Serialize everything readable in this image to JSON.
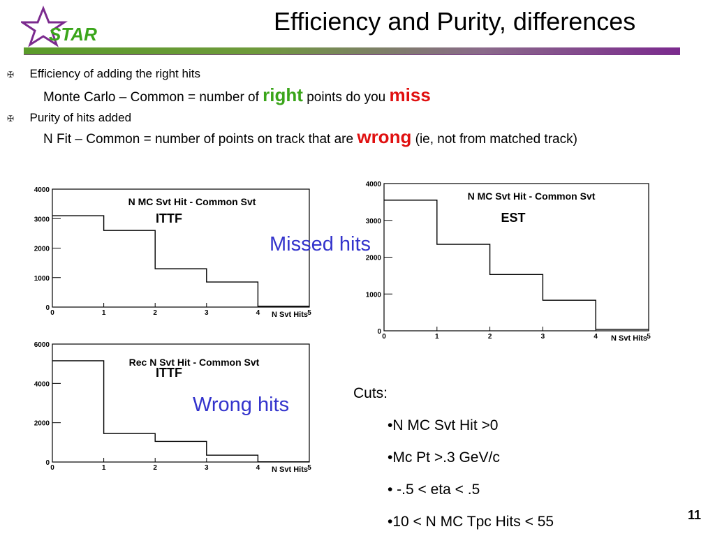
{
  "slide": {
    "title": "Efficiency and Purity, differences",
    "page_number": "11",
    "logo_text": "STAR",
    "bullets": [
      {
        "icon": "cross-bullet-icon",
        "text": "Efficiency of adding the right hits"
      },
      {
        "icon": "cross-bullet-icon",
        "text": "Purity of hits added"
      }
    ],
    "line1": {
      "before": "Monte Carlo – Common = number of ",
      "highlight": "right",
      "middle": " points do you ",
      "highlight2": "miss"
    },
    "line2": {
      "before": "N Fit – Common = number of points on track that are ",
      "highlight": "wrong",
      "after": " (ie, not from matched track)"
    },
    "annotations": {
      "missed": "Missed hits",
      "wrong": "Wrong hits"
    },
    "cuts": {
      "title": "Cuts:",
      "items": [
        "•N MC Svt Hit >0",
        "•Mc Pt >.3 GeV/c",
        "• -.5 < eta < .5",
        "•10 < N MC Tpc Hits < 55"
      ]
    },
    "colors": {
      "green": "#3aa51a",
      "red": "#e01010",
      "blue": "#3333cc",
      "purple": "#7b2a8e"
    }
  },
  "chart_data": [
    {
      "type": "bar",
      "title": "N MC Svt Hit - Common Svt",
      "label": "ITTF",
      "xlabel": "N Svt Hits",
      "ylabel": "",
      "bin_edges": [
        0,
        1,
        2,
        3,
        4,
        5
      ],
      "values": [
        3100,
        2600,
        1300,
        850,
        30
      ],
      "xlim": [
        0,
        5
      ],
      "ylim": [
        0,
        4000
      ],
      "y_ticks": [
        0,
        1000,
        2000,
        3000,
        4000
      ],
      "x_ticks": [
        0,
        1,
        2,
        3,
        4,
        5
      ],
      "y_tick_labels": [
        "0",
        "1000",
        "2000",
        "3000",
        "4000"
      ]
    },
    {
      "type": "bar",
      "title": "N MC Svt Hit - Common Svt",
      "label": "EST",
      "xlabel": "N Svt Hits",
      "ylabel": "",
      "bin_edges": [
        0,
        1,
        2,
        3,
        4,
        5
      ],
      "values": [
        3550,
        2350,
        1530,
        830,
        40
      ],
      "xlim": [
        0,
        5
      ],
      "ylim": [
        0,
        4000
      ],
      "y_ticks": [
        0,
        1000,
        2000,
        3000,
        4000
      ],
      "x_ticks": [
        0,
        1,
        2,
        3,
        4,
        5
      ],
      "y_tick_labels": [
        "0",
        "1000",
        "2000",
        "3000",
        "4000"
      ]
    },
    {
      "type": "bar",
      "title": "Rec N Svt Hit - Common Svt",
      "label": "ITTF",
      "xlabel": "N Svt Hits",
      "ylabel": "",
      "bin_edges": [
        0,
        1,
        2,
        3,
        4,
        5
      ],
      "values": [
        5150,
        1450,
        1050,
        350,
        10
      ],
      "xlim": [
        0,
        5
      ],
      "ylim": [
        0,
        6000
      ],
      "y_ticks": [
        0,
        2000,
        4000,
        6000
      ],
      "x_ticks": [
        0,
        1,
        2,
        3,
        4,
        5
      ],
      "y_tick_labels": [
        "0",
        "2000",
        "4000",
        "6000"
      ]
    }
  ]
}
